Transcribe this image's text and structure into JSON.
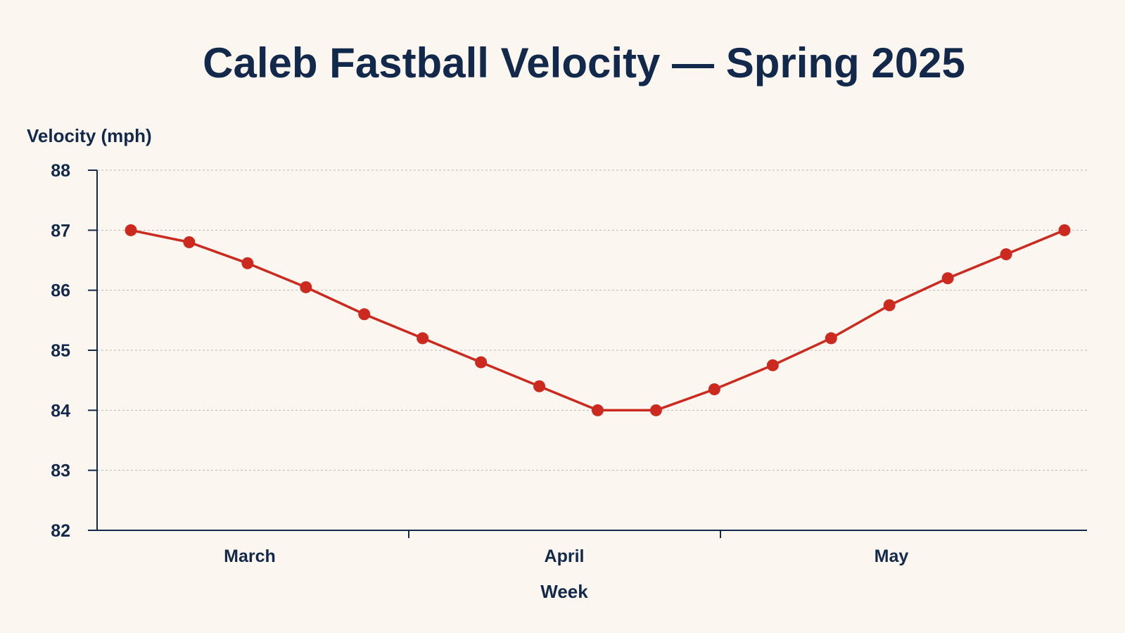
{
  "chart_data": {
    "type": "line",
    "title": "Caleb Fastball Velocity — Spring 2025",
    "xlabel": "Week",
    "ylabel": "Velocity (mph)",
    "ylim": [
      82,
      88
    ],
    "yticks": [
      "82",
      "83",
      "84",
      "85",
      "86",
      "87",
      "88"
    ],
    "month_labels": [
      "March",
      "April",
      "May"
    ],
    "grid": true,
    "colors": {
      "line": "#cc2a1f",
      "text": "#13294b",
      "background": "#fbf7f0"
    },
    "series": [
      {
        "values": [
          87.0,
          86.8,
          86.45,
          86.05,
          85.6,
          85.2,
          84.8,
          84.4,
          84.0,
          84.0,
          84.35,
          84.75,
          85.2,
          85.75,
          86.2,
          86.6,
          87.0
        ]
      }
    ]
  }
}
